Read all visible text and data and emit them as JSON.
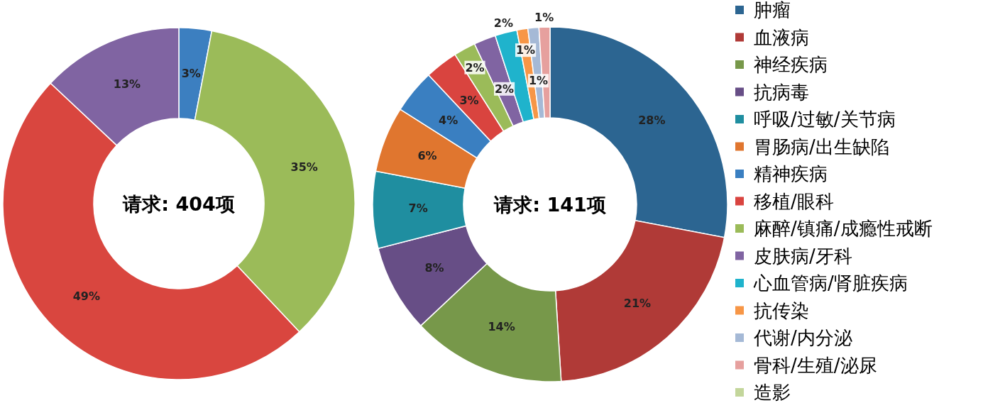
{
  "chart_data": [
    {
      "type": "donut",
      "categories": [
        null,
        null,
        null,
        null
      ],
      "values": [
        3,
        35,
        49,
        13
      ],
      "colors": [
        "#3c7fc0",
        "#9bbb59",
        "#d9463f",
        "#8064a2"
      ],
      "value_labels": [
        "3%",
        "35%",
        "49%",
        "13%"
      ],
      "annotations": [
        "请求: 404项"
      ],
      "legend": false
    },
    {
      "type": "donut",
      "categories": [
        "肿瘤",
        "血液病",
        "神经疾病",
        "抗病毒",
        "呼吸/过敏/关节病",
        "胃肠病/出生缺陷",
        "精神疾病",
        "移植/眼科",
        "麻醉/镇痛/成瘾性戒断",
        "皮肤病/牙科",
        "心血管病/肾脏疾病",
        "抗传染",
        "代谢/内分泌",
        "骨科/生殖/泌尿",
        "造影"
      ],
      "values": [
        28,
        21,
        14,
        8,
        7,
        6,
        4,
        3,
        2,
        2,
        2,
        1,
        1,
        1,
        0
      ],
      "colors": [
        "#2c6591",
        "#b03a37",
        "#77984a",
        "#674e86",
        "#1f8ea0",
        "#e0762f",
        "#3a7fc1",
        "#d9443f",
        "#9bbb59",
        "#8064a2",
        "#1fb3cc",
        "#f79646",
        "#a5b9d6",
        "#e6a09e",
        "#c3d69b"
      ],
      "value_labels": [
        "28%",
        "21%",
        "14%",
        "8%",
        "7%",
        "6%",
        "4%",
        "3%",
        "2%",
        "2%",
        "2%",
        "1%",
        "1%",
        "1%",
        null
      ],
      "annotations": [
        "请求: 141项"
      ],
      "legend": "right"
    }
  ]
}
